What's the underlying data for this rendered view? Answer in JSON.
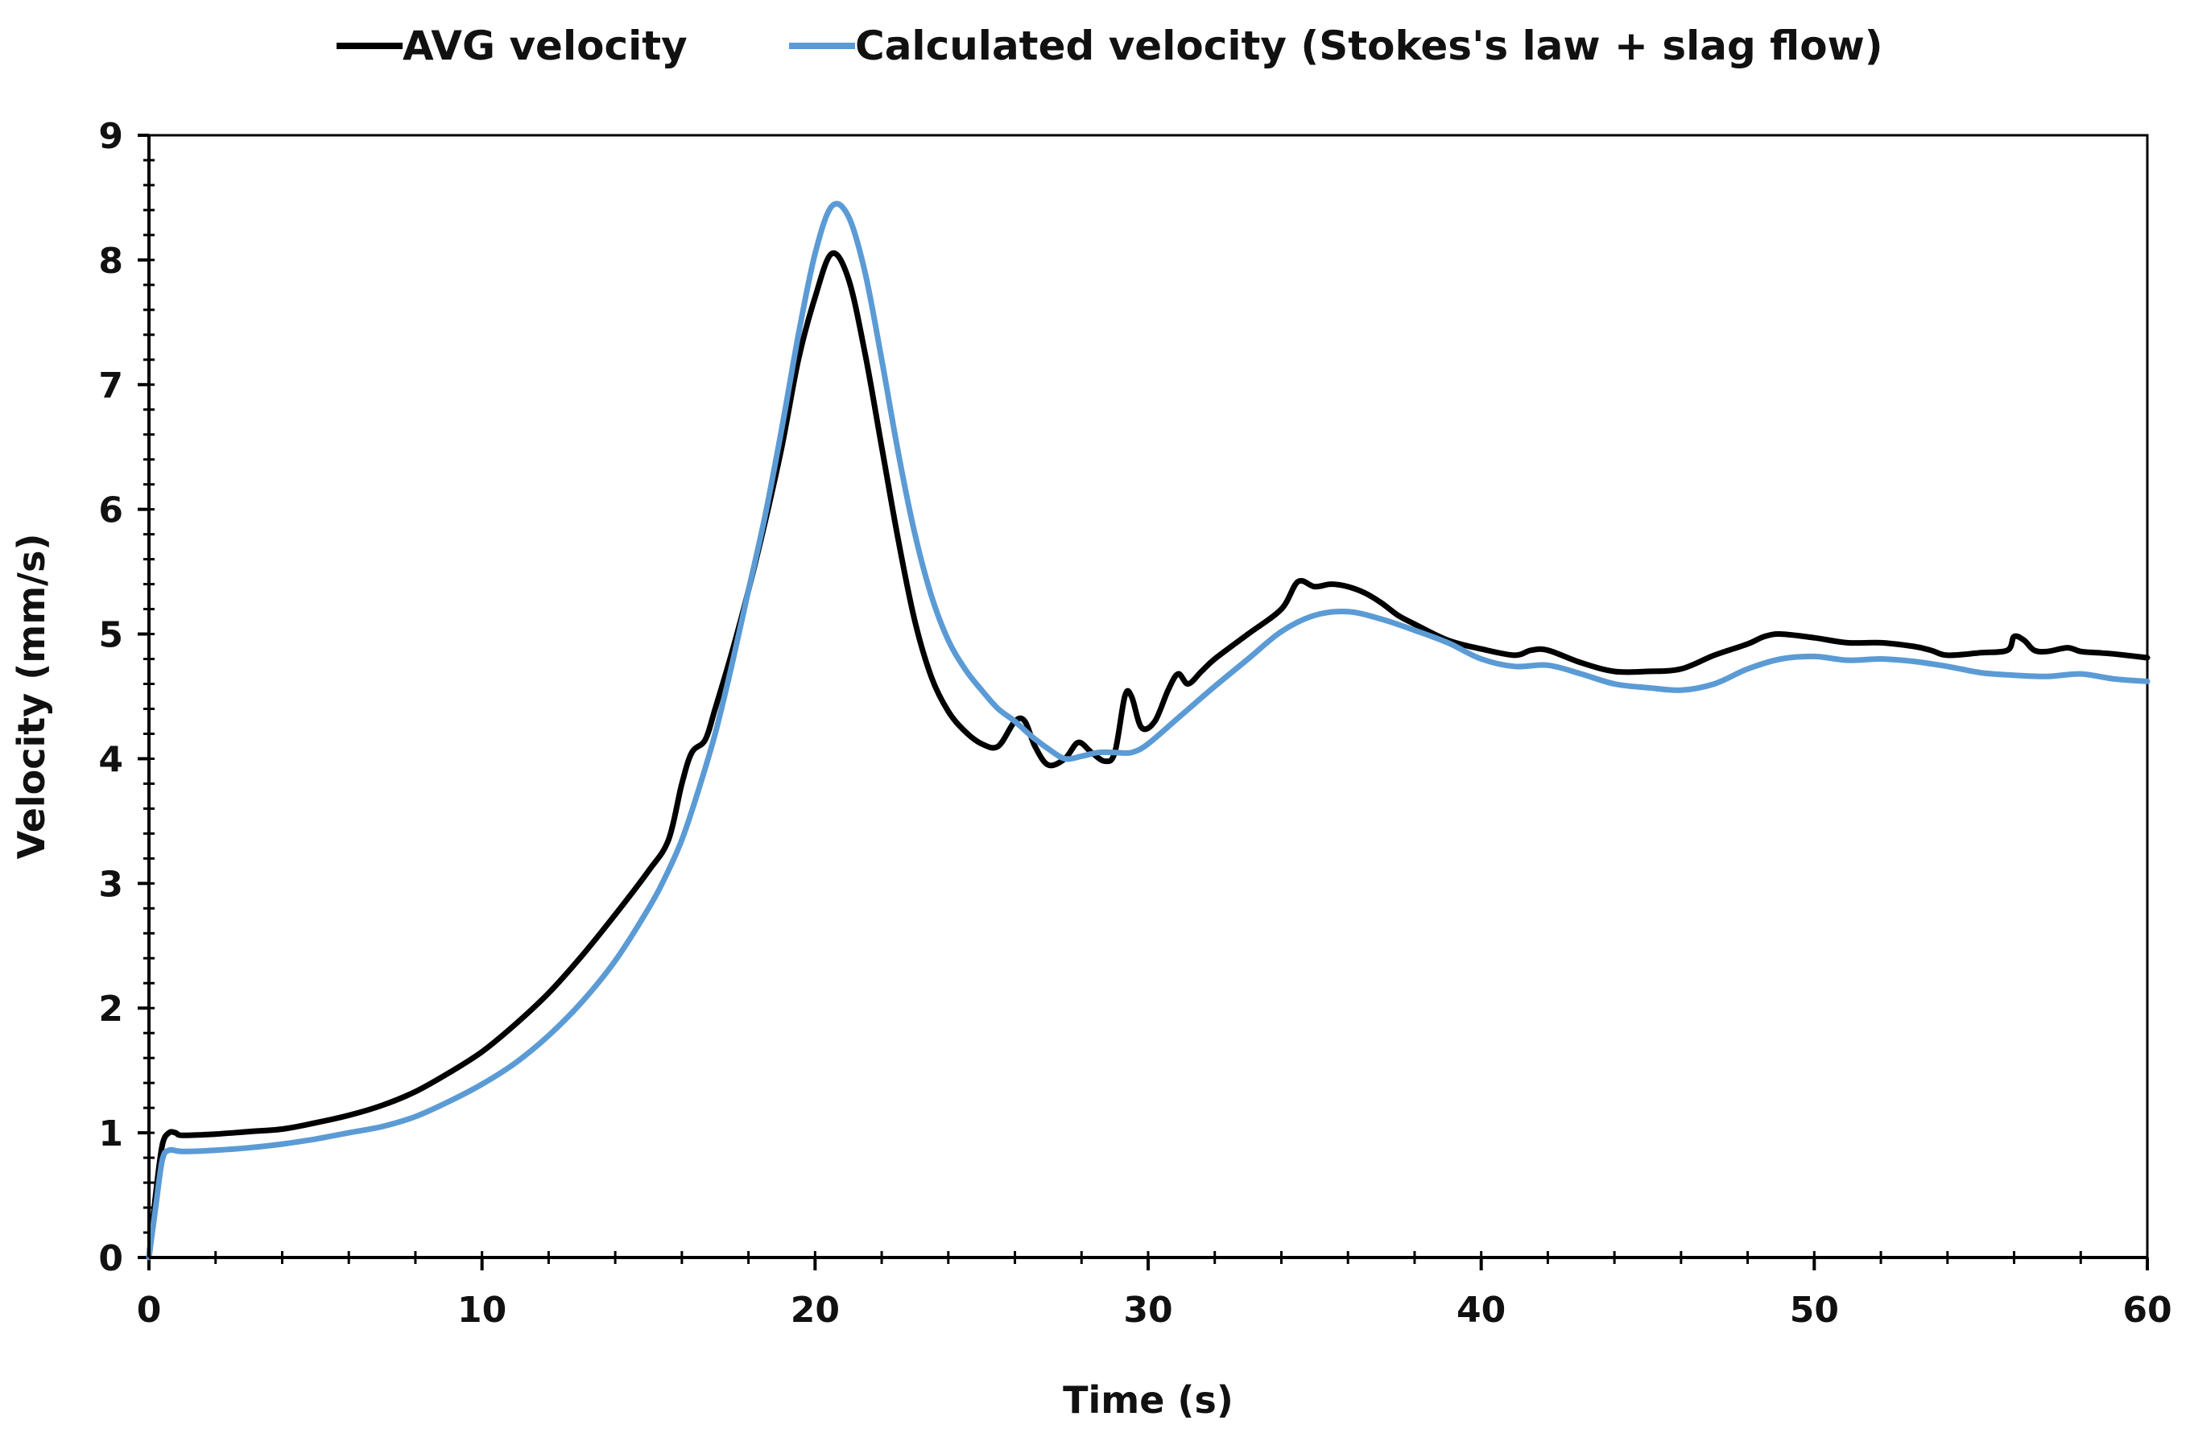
{
  "chart_data": {
    "type": "line",
    "title": "",
    "xlabel": "Time (s)",
    "ylabel": "Velocity (mm/s)",
    "xlim": [
      0,
      60
    ],
    "ylim": [
      0,
      9
    ],
    "x_ticks": [
      0,
      10,
      20,
      30,
      40,
      50,
      60
    ],
    "y_ticks": [
      0,
      1,
      2,
      3,
      4,
      5,
      6,
      7,
      8,
      9
    ],
    "x_minor_step": 2,
    "y_minor_step": 0.2,
    "grid": false,
    "legend_position": "top",
    "series": [
      {
        "name": "AVG velocity",
        "color": "#000000",
        "points": [
          [
            0,
            0
          ],
          [
            0.2,
            0.5
          ],
          [
            0.4,
            0.9
          ],
          [
            0.6,
            1.0
          ],
          [
            0.8,
            1.0
          ],
          [
            1,
            0.98
          ],
          [
            2,
            0.99
          ],
          [
            3,
            1.01
          ],
          [
            4,
            1.03
          ],
          [
            5,
            1.08
          ],
          [
            6,
            1.14
          ],
          [
            7,
            1.22
          ],
          [
            8,
            1.33
          ],
          [
            9,
            1.48
          ],
          [
            10,
            1.65
          ],
          [
            11,
            1.87
          ],
          [
            12,
            2.12
          ],
          [
            13,
            2.42
          ],
          [
            14,
            2.75
          ],
          [
            15,
            3.1
          ],
          [
            15.6,
            3.35
          ],
          [
            16,
            3.8
          ],
          [
            16.3,
            4.05
          ],
          [
            16.7,
            4.15
          ],
          [
            17,
            4.4
          ],
          [
            17.5,
            4.85
          ],
          [
            18,
            5.35
          ],
          [
            18.5,
            5.9
          ],
          [
            19,
            6.5
          ],
          [
            19.5,
            7.2
          ],
          [
            20,
            7.7
          ],
          [
            20.5,
            8.05
          ],
          [
            21,
            7.85
          ],
          [
            21.5,
            7.25
          ],
          [
            22,
            6.5
          ],
          [
            22.5,
            5.75
          ],
          [
            23,
            5.1
          ],
          [
            23.5,
            4.65
          ],
          [
            24,
            4.38
          ],
          [
            24.5,
            4.22
          ],
          [
            25,
            4.12
          ],
          [
            25.5,
            4.1
          ],
          [
            26,
            4.3
          ],
          [
            26.3,
            4.3
          ],
          [
            26.6,
            4.1
          ],
          [
            27,
            3.95
          ],
          [
            27.5,
            4.0
          ],
          [
            27.9,
            4.13
          ],
          [
            28.3,
            4.05
          ],
          [
            28.7,
            3.98
          ],
          [
            29,
            4.05
          ],
          [
            29.3,
            4.5
          ],
          [
            29.5,
            4.5
          ],
          [
            29.8,
            4.25
          ],
          [
            30.2,
            4.3
          ],
          [
            30.6,
            4.55
          ],
          [
            30.9,
            4.68
          ],
          [
            31.2,
            4.6
          ],
          [
            31.6,
            4.7
          ],
          [
            32,
            4.8
          ],
          [
            33,
            5.0
          ],
          [
            34,
            5.2
          ],
          [
            34.5,
            5.42
          ],
          [
            35,
            5.38
          ],
          [
            35.5,
            5.4
          ],
          [
            36,
            5.38
          ],
          [
            36.5,
            5.33
          ],
          [
            37,
            5.25
          ],
          [
            37.5,
            5.15
          ],
          [
            38,
            5.08
          ],
          [
            39,
            4.95
          ],
          [
            40,
            4.88
          ],
          [
            41,
            4.83
          ],
          [
            41.5,
            4.87
          ],
          [
            42,
            4.87
          ],
          [
            43,
            4.77
          ],
          [
            44,
            4.7
          ],
          [
            45,
            4.7
          ],
          [
            46,
            4.72
          ],
          [
            47,
            4.83
          ],
          [
            48,
            4.92
          ],
          [
            48.5,
            4.98
          ],
          [
            49,
            5.0
          ],
          [
            50,
            4.97
          ],
          [
            51,
            4.93
          ],
          [
            52,
            4.93
          ],
          [
            53,
            4.9
          ],
          [
            53.5,
            4.87
          ],
          [
            54,
            4.83
          ],
          [
            55,
            4.85
          ],
          [
            55.8,
            4.87
          ],
          [
            56,
            4.98
          ],
          [
            56.3,
            4.95
          ],
          [
            56.6,
            4.87
          ],
          [
            57,
            4.86
          ],
          [
            57.6,
            4.89
          ],
          [
            58,
            4.86
          ],
          [
            58.5,
            4.85
          ],
          [
            59,
            4.84
          ],
          [
            60,
            4.81
          ]
        ]
      },
      {
        "name": "Calculated velocity (Stokes's law + slag flow)",
        "color": "#5b9bd5",
        "points": [
          [
            0,
            0
          ],
          [
            0.2,
            0.4
          ],
          [
            0.4,
            0.78
          ],
          [
            0.6,
            0.86
          ],
          [
            1,
            0.85
          ],
          [
            2,
            0.86
          ],
          [
            3,
            0.88
          ],
          [
            4,
            0.91
          ],
          [
            5,
            0.95
          ],
          [
            6,
            1.0
          ],
          [
            7,
            1.05
          ],
          [
            8,
            1.13
          ],
          [
            9,
            1.25
          ],
          [
            10,
            1.39
          ],
          [
            11,
            1.56
          ],
          [
            12,
            1.78
          ],
          [
            13,
            2.05
          ],
          [
            14,
            2.38
          ],
          [
            15,
            2.8
          ],
          [
            15.5,
            3.05
          ],
          [
            16,
            3.35
          ],
          [
            16.5,
            3.75
          ],
          [
            17,
            4.2
          ],
          [
            17.5,
            4.75
          ],
          [
            18,
            5.35
          ],
          [
            18.5,
            5.95
          ],
          [
            19,
            6.65
          ],
          [
            19.5,
            7.4
          ],
          [
            20,
            8.05
          ],
          [
            20.5,
            8.43
          ],
          [
            21,
            8.35
          ],
          [
            21.5,
            7.9
          ],
          [
            22,
            7.2
          ],
          [
            22.5,
            6.45
          ],
          [
            23,
            5.8
          ],
          [
            23.5,
            5.3
          ],
          [
            24,
            4.95
          ],
          [
            24.5,
            4.72
          ],
          [
            25,
            4.55
          ],
          [
            25.5,
            4.4
          ],
          [
            26,
            4.3
          ],
          [
            26.5,
            4.18
          ],
          [
            27,
            4.08
          ],
          [
            27.5,
            4.0
          ],
          [
            28,
            4.02
          ],
          [
            28.5,
            4.05
          ],
          [
            29,
            4.05
          ],
          [
            29.5,
            4.05
          ],
          [
            30,
            4.12
          ],
          [
            31,
            4.35
          ],
          [
            32,
            4.58
          ],
          [
            33,
            4.8
          ],
          [
            34,
            5.02
          ],
          [
            35,
            5.15
          ],
          [
            36,
            5.18
          ],
          [
            37,
            5.12
          ],
          [
            38,
            5.03
          ],
          [
            39,
            4.93
          ],
          [
            40,
            4.8
          ],
          [
            41,
            4.74
          ],
          [
            42,
            4.75
          ],
          [
            43,
            4.68
          ],
          [
            44,
            4.6
          ],
          [
            45,
            4.57
          ],
          [
            46,
            4.55
          ],
          [
            47,
            4.6
          ],
          [
            48,
            4.72
          ],
          [
            49,
            4.8
          ],
          [
            50,
            4.82
          ],
          [
            51,
            4.79
          ],
          [
            52,
            4.8
          ],
          [
            53,
            4.78
          ],
          [
            54,
            4.74
          ],
          [
            55,
            4.69
          ],
          [
            56,
            4.67
          ],
          [
            57,
            4.66
          ],
          [
            58,
            4.68
          ],
          [
            59,
            4.64
          ],
          [
            60,
            4.62
          ]
        ]
      }
    ]
  }
}
